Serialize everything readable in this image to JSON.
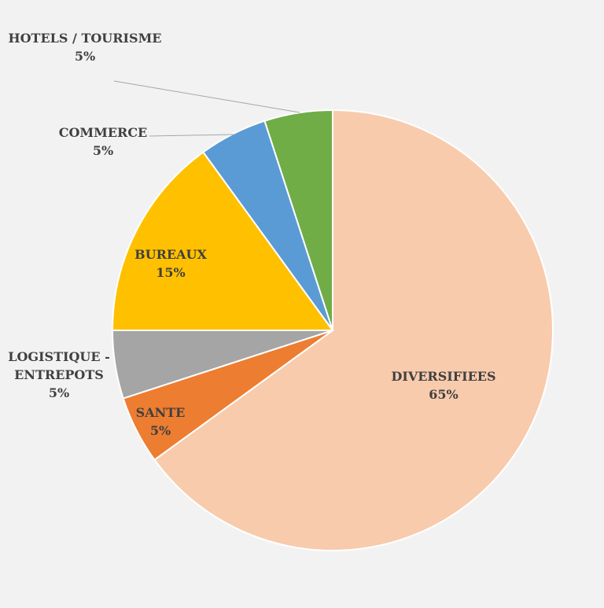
{
  "chart_data": {
    "type": "pie",
    "title": "",
    "slices": [
      {
        "label": "DIVERSIFIEES",
        "value": 65,
        "value_label": "65%",
        "color": "#f8cbad"
      },
      {
        "label": "SANTE",
        "value": 5,
        "value_label": "5%",
        "color": "#ed7d31"
      },
      {
        "label": "LOGISTIQUE - ENTREPOTS",
        "value": 5,
        "value_label": "5%",
        "color": "#a5a5a5"
      },
      {
        "label": "BUREAUX",
        "value": 15,
        "value_label": "15%",
        "color": "#ffc000"
      },
      {
        "label": "COMMERCE",
        "value": 5,
        "value_label": "5%",
        "color": "#5b9bd5"
      },
      {
        "label": "HOTELS / TOURISME",
        "value": 5,
        "value_label": "5%",
        "color": "#70ad47"
      }
    ]
  }
}
